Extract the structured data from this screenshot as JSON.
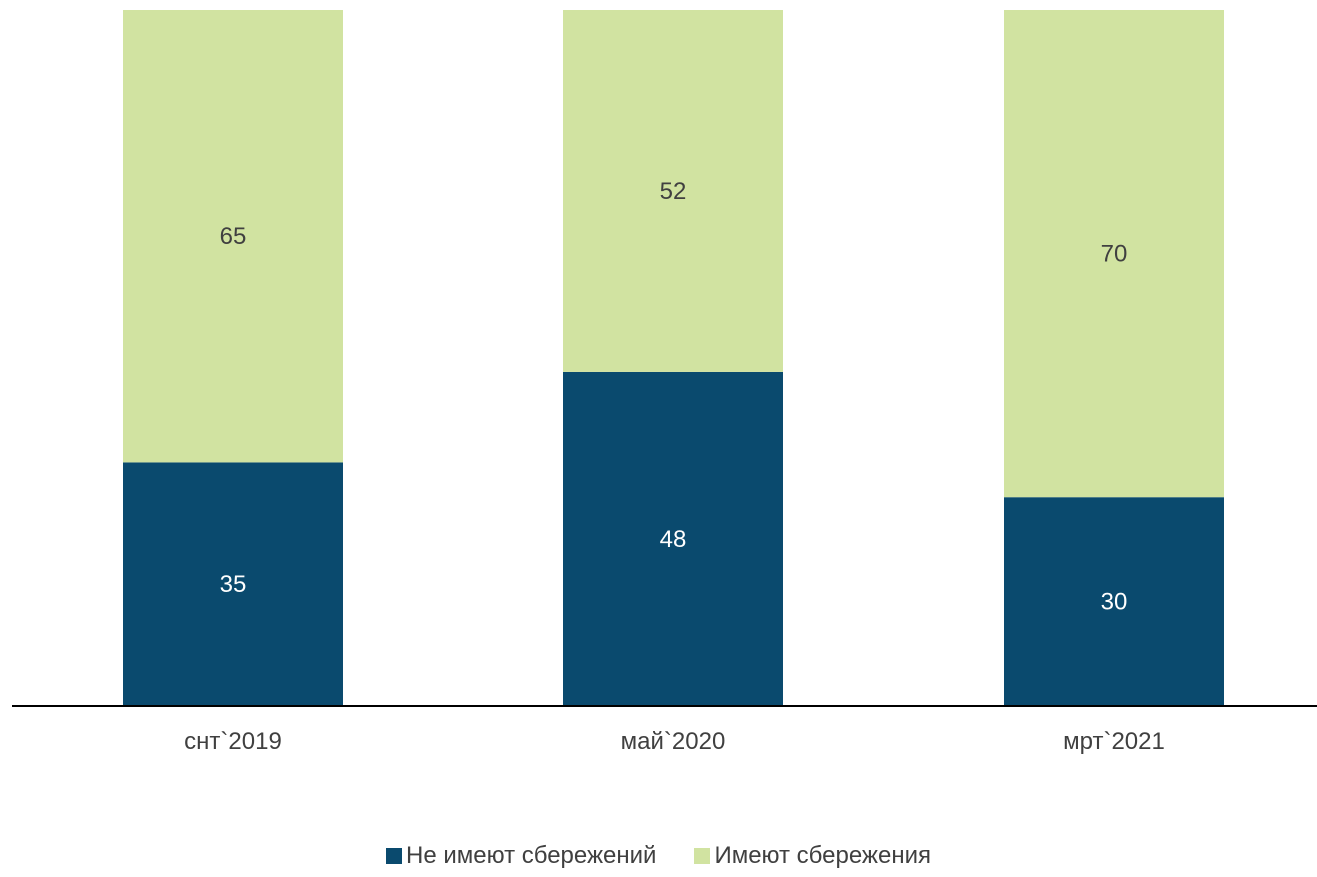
{
  "chart_data": {
    "type": "bar",
    "stacked": true,
    "categories": [
      "снт`2019",
      "май`2020",
      "мрт`2021"
    ],
    "series": [
      {
        "name": "Не имеют сбережений",
        "values": [
          35,
          48,
          30
        ],
        "color": "#0a4a6e",
        "label_color": "#ffffff"
      },
      {
        "name": "Имеют сбережения",
        "values": [
          65,
          52,
          70
        ],
        "color": "#d1e3a1",
        "label_color": "#404040"
      }
    ],
    "ylim": [
      0,
      100
    ],
    "grid": false,
    "legend": "bottom"
  }
}
